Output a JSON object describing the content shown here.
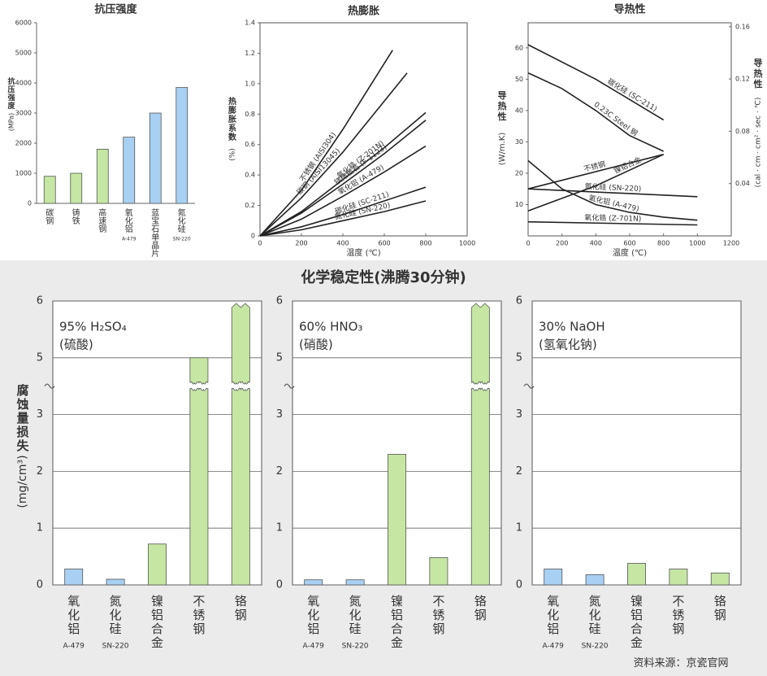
{
  "chart_data": [
    {
      "type": "bar",
      "title": "抗压强度",
      "y_label": "抗压强度",
      "y_unit": "(MPa)",
      "categories": [
        "碳钢",
        "铸铁",
        "高速钢",
        "氧化铝",
        "蓝宝石单晶片",
        "氮化硅"
      ],
      "sublabels": [
        null,
        null,
        null,
        "A-479",
        null,
        "SN-220"
      ],
      "values": [
        900,
        1000,
        1800,
        2200,
        3000,
        3850
      ],
      "colors": [
        "#c6e6a4",
        "#c6e6a4",
        "#c6e6a4",
        "#a8d0f2",
        "#a8d0f2",
        "#a8d0f2"
      ],
      "ylim": [
        0,
        6000
      ],
      "yticks": [
        0,
        1000,
        2000,
        3000,
        4000,
        5000,
        6000
      ],
      "grid": false
    },
    {
      "type": "line",
      "title": "热膨胀",
      "y_label": "热膨胀系数",
      "y_unit": "(%)",
      "x_label": "温度 (℃)",
      "xlim": [
        0,
        1000
      ],
      "xticks": [
        0,
        200,
        400,
        600,
        800,
        1000
      ],
      "ylim": [
        0,
        1.4
      ],
      "yticks": [
        0,
        0.2,
        0.4,
        0.6,
        0.8,
        {
          "value": 1,
          "label": "1.0"
        },
        1.2,
        1.4
      ],
      "series": [
        {
          "name": "不锈钢 (AISI304)",
          "color": "#222222",
          "x": [
            0,
            200,
            400,
            640
          ],
          "values": [
            0,
            0.3,
            0.7,
            1.22
          ]
        },
        {
          "name": "碳钢 (AISI13045)",
          "color": "#222222",
          "x": [
            0,
            200,
            400,
            710
          ],
          "values": [
            0,
            0.25,
            0.55,
            1.07
          ]
        },
        {
          "name": "氧化锆 (Z-201N)",
          "color": "#222222",
          "x": [
            0,
            200,
            400,
            600,
            800
          ],
          "values": [
            0,
            0.16,
            0.37,
            0.58,
            0.81
          ]
        },
        {
          "name": "镁橄榄石 (F-1123)",
          "color": "#222222",
          "x": [
            0,
            200,
            400,
            600,
            800
          ],
          "values": [
            0,
            0.15,
            0.34,
            0.54,
            0.76
          ]
        },
        {
          "name": "氧化铝 (A-479)",
          "color": "#222222",
          "x": [
            0,
            200,
            400,
            600,
            800
          ],
          "values": [
            0,
            0.11,
            0.26,
            0.42,
            0.59
          ]
        },
        {
          "name": "碳化硅 (SC-211)",
          "color": "#222222",
          "x": [
            0,
            200,
            400,
            600,
            800
          ],
          "values": [
            0,
            0.06,
            0.14,
            0.23,
            0.32
          ]
        },
        {
          "name": "氮化硅 (SN-220)",
          "color": "#222222",
          "x": [
            0,
            200,
            400,
            600,
            800
          ],
          "values": [
            0,
            0.04,
            0.1,
            0.16,
            0.23
          ]
        }
      ]
    },
    {
      "type": "line",
      "title": "导热性",
      "y_label": "导热性",
      "y_unit": "(W/m.K)",
      "y2_label": "导热性",
      "y2_unit": "(cal · cm · cm² · sec · ℃)",
      "x_label": "温度 (℃)",
      "xlim": [
        0,
        1200
      ],
      "xticks": [
        0,
        200,
        400,
        600,
        800,
        1000,
        1200
      ],
      "ylim": [
        0,
        68
      ],
      "yticks": [
        10,
        20,
        30,
        40,
        50,
        60
      ],
      "y2lim": [
        0,
        0.163
      ],
      "y2ticks": [
        0.04,
        0.08,
        0.12,
        0.16
      ],
      "series": [
        {
          "name": "碳化硅 (SC-211)",
          "color": "#222222",
          "x": [
            0,
            400,
            800
          ],
          "values": [
            61,
            50,
            37
          ]
        },
        {
          "name": "0.23C Steel 钢",
          "color": "#222222",
          "x": [
            0,
            200,
            400,
            600,
            800
          ],
          "values": [
            52,
            47,
            40,
            32,
            27
          ]
        },
        {
          "name": "不锈钢",
          "color": "#222222",
          "x": [
            0,
            800
          ],
          "values": [
            15,
            26
          ]
        },
        {
          "name": "镍铝合金",
          "color": "#222222",
          "x": [
            0,
            400,
            800
          ],
          "values": [
            8,
            16,
            26
          ]
        },
        {
          "name": "氮化硅 (SN-220)",
          "color": "#222222",
          "x": [
            0,
            1000
          ],
          "values": [
            15,
            12.5
          ]
        },
        {
          "name": "氧化铝 (A-479)",
          "color": "#222222",
          "x": [
            0,
            200,
            400,
            600,
            800,
            1000
          ],
          "values": [
            24,
            15,
            10,
            7.5,
            6,
            5
          ]
        },
        {
          "name": "氧化锆 (Z-701N)",
          "color": "#222222",
          "x": [
            0,
            1000
          ],
          "values": [
            4.5,
            3.5
          ]
        }
      ]
    },
    {
      "type": "bar",
      "annotation": [
        "95% H₂SO₄",
        "(硫酸)"
      ],
      "y_label": "腐蚀量损失",
      "y_unit": "(mg/cm³)",
      "categories": [
        "氧化铝",
        "氮化硅",
        "镍铝合金",
        "不锈钢",
        "铬钢"
      ],
      "sublabels": [
        "A-479",
        "SN-220",
        null,
        null,
        null
      ],
      "values": [
        0.28,
        0.1,
        0.72,
        5,
        6
      ],
      "colors": [
        "#a8d0f2",
        "#a8d0f2",
        "#c6e6a4",
        "#c6e6a4",
        "#c6e6a4"
      ],
      "ylim": [
        0,
        6
      ],
      "yticks": [
        0,
        1,
        2,
        3,
        5,
        6
      ],
      "axis_break": [
        3,
        5
      ],
      "grid": true
    },
    {
      "type": "bar",
      "annotation": [
        "60% HNO₃",
        "(硝酸)"
      ],
      "categories": [
        "氧化铝",
        "氮化硅",
        "镍铝合金",
        "不锈钢",
        "铬钢"
      ],
      "sublabels": [
        "A-479",
        "SN-220",
        null,
        null,
        null
      ],
      "values": [
        0.09,
        0.09,
        2.3,
        0.48,
        6
      ],
      "colors": [
        "#a8d0f2",
        "#a8d0f2",
        "#c6e6a4",
        "#c6e6a4",
        "#c6e6a4"
      ],
      "ylim": [
        0,
        6
      ],
      "yticks": [
        0,
        1,
        2,
        3,
        5,
        6
      ],
      "axis_break": [
        3,
        5
      ],
      "grid": true
    },
    {
      "type": "bar",
      "annotation": [
        "30% NaOH",
        "(氢氧化钠)"
      ],
      "categories": [
        "氧化铝",
        "氮化硅",
        "镍铝合金",
        "不锈钢",
        "铬钢"
      ],
      "sublabels": [
        "A-479",
        "SN-220",
        null,
        null,
        null
      ],
      "values": [
        0.28,
        0.18,
        0.38,
        0.28,
        0.21
      ],
      "colors": [
        "#a8d0f2",
        "#a8d0f2",
        "#c6e6a4",
        "#c6e6a4",
        "#c6e6a4"
      ],
      "ylim": [
        0,
        6
      ],
      "yticks": [
        0,
        1,
        2,
        3,
        5,
        6
      ],
      "axis_break": [
        3,
        5
      ],
      "grid": true
    }
  ],
  "section_title": "化学稳定性(沸腾30分钟)",
  "source": "资料来源：京瓷官网"
}
